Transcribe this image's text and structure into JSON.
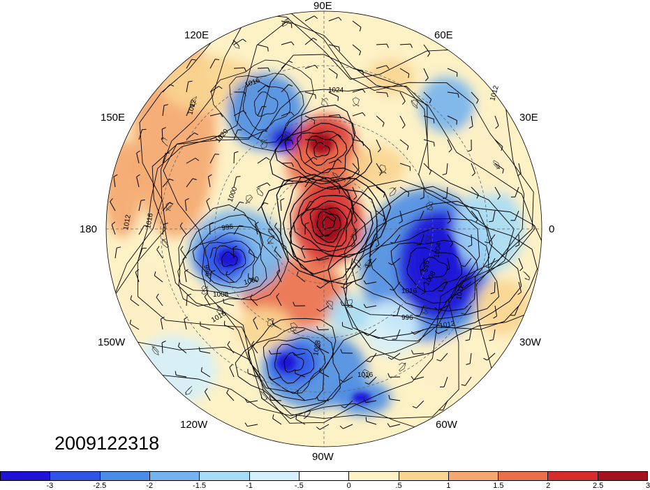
{
  "longitude_labels": [
    "90E",
    "60E",
    "30E",
    "0",
    "30W",
    "60W",
    "90W",
    "120W",
    "150W",
    "180",
    "150E",
    "120E"
  ],
  "contour_labels": [
    "1016",
    "1012",
    "1024",
    "1012",
    "1020",
    "1012",
    "1016",
    "1000",
    "996",
    "996",
    "1008",
    "1000",
    "1016",
    "1016",
    "1008",
    "996",
    "1004",
    "1012",
    "1012",
    "996",
    "1008",
    "1016"
  ],
  "timestamp": "2009122318",
  "colorbar": {
    "tick_labels": [
      "-3",
      "-2.5",
      "-2",
      "-1.5",
      "-1",
      "-.5",
      "0",
      ".5",
      "1",
      "1.5",
      "2",
      "2.5",
      "3"
    ],
    "colors": [
      "#1e12d6",
      "#2f55e8",
      "#4a8de6",
      "#73b4ee",
      "#a6dcf6",
      "#d4f1fb",
      "#ffffff",
      "#fdf1c6",
      "#f9d591",
      "#f4a76e",
      "#ea6f4c",
      "#d82b2b",
      "#a6101f"
    ]
  }
}
